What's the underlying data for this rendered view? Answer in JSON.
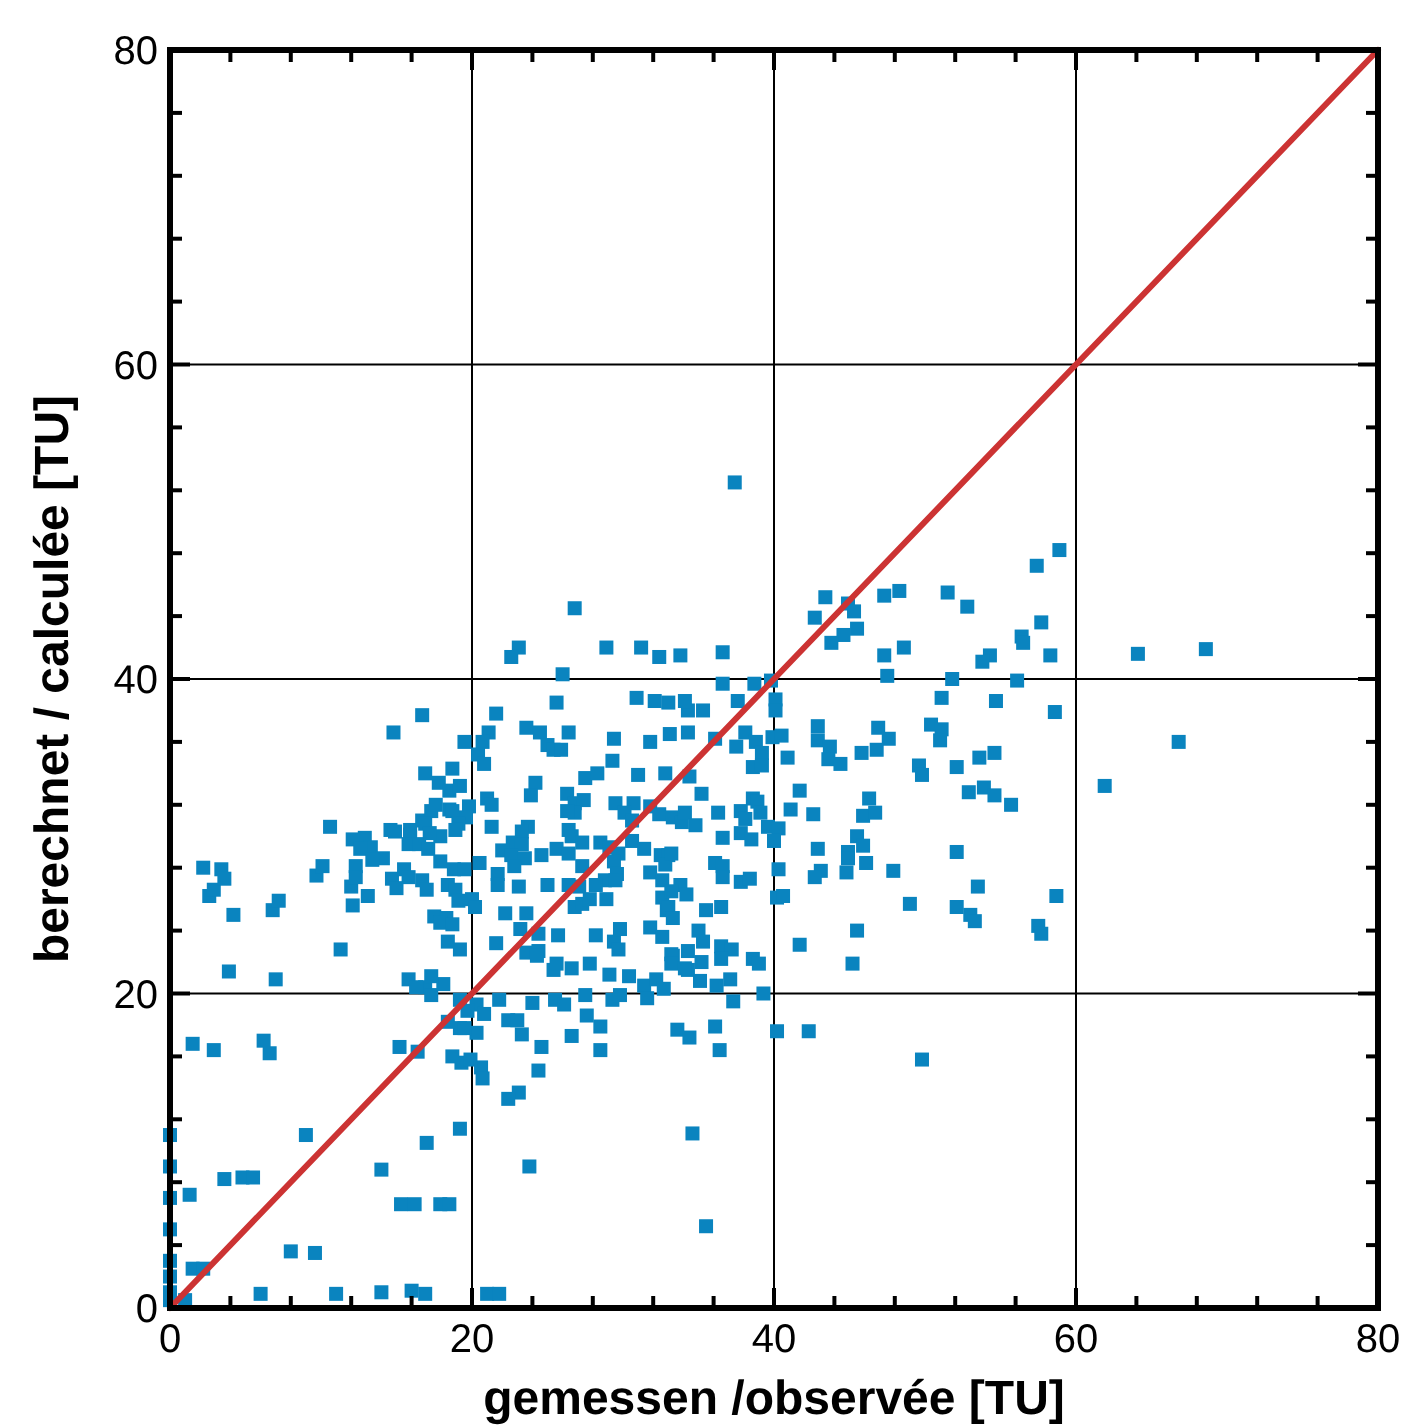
{
  "chart_data": {
    "type": "scatter",
    "xlabel": "gemessen /observée [TU]",
    "ylabel": "berechnet / calculée [TU]",
    "xlim": [
      0,
      80
    ],
    "ylim": [
      0,
      80
    ],
    "xticks": [
      0,
      {
        "value": 4,
        "label": null
      },
      {
        "value": 8,
        "label": null
      },
      {
        "value": 12,
        "label": null
      },
      {
        "value": 16,
        "label": null
      },
      20,
      {
        "value": 24,
        "label": null
      },
      {
        "value": 28,
        "label": null
      },
      {
        "value": 32,
        "label": null
      },
      {
        "value": 36,
        "label": null
      },
      40,
      {
        "value": 44,
        "label": null
      },
      {
        "value": 48,
        "label": null
      },
      {
        "value": 52,
        "label": null
      },
      {
        "value": 56,
        "label": null
      },
      60,
      {
        "value": 64,
        "label": null
      },
      {
        "value": 68,
        "label": null
      },
      {
        "value": 72,
        "label": null
      },
      {
        "value": 76,
        "label": null
      },
      80
    ],
    "yticks": [
      0,
      {
        "value": 4,
        "label": null
      },
      {
        "value": 8,
        "label": null
      },
      {
        "value": 12,
        "label": null
      },
      {
        "value": 16,
        "label": null
      },
      20,
      {
        "value": 24,
        "label": null
      },
      {
        "value": 28,
        "label": null
      },
      {
        "value": 32,
        "label": null
      },
      {
        "value": 36,
        "label": null
      },
      40,
      {
        "value": 44,
        "label": null
      },
      {
        "value": 48,
        "label": null
      },
      {
        "value": 52,
        "label": null
      },
      {
        "value": 56,
        "label": null
      },
      60,
      {
        "value": 64,
        "label": null
      },
      {
        "value": 68,
        "label": null
      },
      {
        "value": 72,
        "label": null
      },
      {
        "value": 76,
        "label": null
      },
      80
    ],
    "grid": true,
    "series": [
      {
        "color": "#0a84bf",
        "marker": "square",
        "x": [
          0,
          0,
          0,
          0,
          0,
          0,
          0,
          0,
          1,
          1.5,
          2.2,
          1.3,
          6.0,
          11,
          14,
          16,
          16.9,
          8.0,
          9.6,
          3.6,
          4.8,
          5.5,
          9.0,
          14,
          15.3,
          16.2,
          17.9,
          18.5,
          17.0,
          19.2,
          21.0,
          21.8,
          1.5,
          2.9,
          6.2,
          6.6,
          16.4,
          19.2,
          19.3,
          20.6,
          20.3,
          20.3,
          20.8,
          16.9,
          17.3,
          18.1,
          3.9,
          7.0,
          11.3,
          19.2,
          4.2,
          6.8,
          7.2,
          2.6,
          2.9,
          2.2,
          3.4,
          3.6,
          10.6,
          9.7,
          10.1,
          12.0,
          12.3,
          13.1,
          14.7,
          15.5,
          16.7,
          17.5,
          18.3,
          12.9,
          13.3,
          14.1,
          14.6,
          15.9,
          16.7,
          17.3,
          18.5,
          26.8,
          23.1,
          22.6,
          28.9,
          31.2,
          32.4,
          26.0,
          30.9,
          32.1,
          33.0,
          34.3,
          25.6,
          16.7,
          21.6,
          14.8,
          21.1,
          20.7,
          20.4,
          19.5,
          23.6,
          24.5,
          25.0,
          25.4,
          25.9,
          26.4,
          29.4,
          31.8,
          33.1,
          20.8,
          16.9,
          17.8,
          18.7,
          29.3,
          27.5,
          28.3,
          31.0,
          32.8,
          24.2,
          23.9,
          18.5,
          19.2,
          17.6,
          21.0,
          21.3,
          19.8,
          19.6,
          26.3,
          26.8,
          27.4,
          26.8,
          26.3,
          29.5,
          30.7,
          30.1,
          30.6,
          31.8,
          32.4,
          33.3,
          33.9,
          16.9,
          15.9,
          14.9,
          12.1,
          12.6,
          13.4,
          18.7,
          19.1,
          18.9,
          21.3,
          23.7,
          23.3,
          17.9,
          17.2,
          15.8,
          16.5,
          17.1,
          22.7,
          23.3,
          26.4,
          26.6,
          27.3,
          28.5,
          29.1,
          29.7,
          30.6,
          31.4,
          32.5,
          33.0,
          22.0,
          22.6,
          23.5,
          24.6,
          25.6,
          26.4,
          17.9,
          18.8,
          19.5,
          20.5,
          21.7,
          22.8,
          27.3,
          29.4,
          29.6,
          28.8,
          12.3,
          15.8,
          15.0,
          17.0,
          18.4,
          18.9,
          21.7,
          23.1,
          25.0,
          26.4,
          27.1,
          28.2,
          29.5,
          31.8,
          32.6,
          33.8,
          12.1,
          19.1,
          20.0,
          20.2,
          26.8,
          27.3,
          27.8,
          28.9,
          32.6,
          32.9,
          17.9,
          18.7,
          22.2,
          23.6,
          18.4,
          21.6,
          23.2,
          24.4,
          25.7,
          28.2,
          29.4,
          29.8,
          29.7,
          31.8,
          32.6,
          33.3,
          34.3,
          23.6,
          24.4,
          24.3,
          25.4,
          25.6,
          26.6,
          27.8,
          29.1,
          30.4,
          31.4,
          32.2,
          34.3,
          15.8,
          16.3,
          17.3,
          19.2,
          19.7,
          21.8,
          24.0,
          25.5,
          26.1,
          27.5,
          29.3,
          29.8,
          31.6,
          18.4,
          19.5,
          22.4,
          23.0,
          23.3,
          26.6,
          27.6,
          28.5,
          28.5,
          33.6,
          15.2,
          18.7,
          19.9,
          24.6,
          24.4,
          23.1,
          22.4,
          37.4,
          57.4,
          58.9,
          51.5,
          52.8,
          57.7,
          56.4,
          56.5,
          58.3,
          54.3,
          53.8,
          47.3,
          48.3,
          43.4,
          44.9,
          45.3,
          42.7,
          45.5,
          44.6,
          43.8,
          47.3,
          48.6,
          33.8,
          36.6,
          36.6,
          38.7,
          39.8,
          47.5,
          51.8,
          56.1,
          51.1,
          54.7,
          58.6,
          34.1,
          37.6,
          40.1,
          40.1,
          35.3,
          42.9,
          46.9,
          47.6,
          50.4,
          51.1,
          51.0,
          34.3,
          36.1,
          37.5,
          38.1,
          38.8,
          39.2,
          39.9,
          40.5,
          40.9,
          42.9,
          43.7,
          43.6,
          44.4,
          45.8,
          46.8,
          38.6,
          39.2,
          49.6,
          49.8,
          52.1,
          53.6,
          54.6,
          34.4,
          35.2,
          38.6,
          38.9,
          41.7,
          41.1,
          42.6,
          46.3,
          45.9,
          46.7,
          52.9,
          53.9,
          54.6,
          55.7,
          34.1,
          36.3,
          37.8,
          39.1,
          38.1,
          39.6,
          40.3,
          34.8,
          36.6,
          37.8,
          38.5,
          40.0,
          42.9,
          44.9,
          45.5,
          45.9,
          44.9,
          52.1,
          36.1,
          32.8,
          33.2,
          36.6,
          40.3,
          43.1,
          42.7,
          44.8,
          46.1,
          47.9,
          36.6,
          37.8,
          38.4,
          33.2,
          34.2,
          40.2,
          40.6,
          58.7,
          33.0,
          35.5,
          36.5,
          33.3,
          52.1,
          35.0,
          35.3,
          36.5,
          37.2,
          33.2,
          36.5,
          45.5,
          41.7,
          45.2,
          57.5,
          57.7,
          33.2,
          34.1,
          35.2,
          38.6,
          39.0,
          35.1,
          36.2,
          37.1,
          32.7,
          39.3,
          37.3,
          36.1,
          34.4,
          40.2,
          42.3,
          36.4,
          49.8,
          64.1,
          68.6,
          66.8,
          61.9,
          53.5,
          53.0,
          53.3,
          49.0,
          35.5,
          34.6,
          23.8,
          20.7
        ],
        "values": [
          0.5,
          1,
          2,
          3,
          5,
          7,
          9,
          11,
          0.5,
          2.5,
          2.5,
          7.2,
          0.9,
          0.9,
          1.0,
          1.1,
          0.9,
          3.6,
          3.5,
          8.2,
          8.3,
          8.3,
          11.0,
          8.8,
          6.6,
          6.6,
          6.6,
          6.6,
          10.5,
          11.4,
          0.9,
          0.9,
          16.8,
          16.4,
          17.0,
          16.2,
          16.3,
          17.8,
          15.6,
          15.3,
          17.5,
          19.3,
          18.7,
          20.4,
          19.9,
          20.6,
          21.4,
          20.9,
          22.8,
          22.8,
          25.0,
          25.3,
          25.9,
          26.2,
          26.6,
          28.0,
          27.9,
          27.3,
          30.6,
          27.5,
          28.1,
          26.8,
          28.1,
          26.2,
          27.3,
          27.9,
          27.2,
          24.9,
          24.8,
          29.9,
          29.3,
          28.6,
          30.4,
          30.4,
          31.0,
          31.6,
          31.7,
          44.5,
          42.0,
          41.4,
          42.0,
          42.0,
          41.4,
          40.3,
          38.8,
          38.6,
          38.5,
          38.0,
          38.5,
          37.7,
          37.8,
          36.6,
          36.6,
          36.0,
          35.2,
          36.0,
          36.9,
          36.6,
          35.8,
          35.5,
          35.5,
          36.6,
          36.2,
          36.0,
          36.5,
          34.6,
          34.0,
          33.4,
          34.3,
          34.8,
          33.7,
          34.0,
          33.9,
          34.0,
          33.4,
          32.6,
          32.9,
          33.2,
          32.0,
          32.4,
          32.0,
          31.9,
          31.2,
          32.7,
          32.1,
          32.3,
          31.5,
          31.6,
          32.1,
          32.1,
          31.5,
          31.0,
          31.9,
          31.4,
          31.2,
          30.9,
          30.8,
          30.1,
          30.3,
          29.8,
          29.2,
          28.5,
          31.6,
          30.8,
          30.4,
          30.6,
          30.6,
          30.3,
          30.0,
          30.2,
          29.5,
          29.5,
          29.2,
          29.6,
          29.5,
          30.4,
          30.0,
          29.6,
          29.6,
          29.3,
          28.9,
          29.7,
          29.2,
          28.8,
          28.8,
          29.1,
          28.8,
          28.6,
          28.8,
          29.2,
          28.9,
          28.4,
          27.9,
          27.9,
          28.3,
          27.6,
          28.1,
          28.1,
          28.4,
          27.6,
          27.2,
          27.4,
          27.4,
          26.7,
          26.6,
          26.9,
          26.6,
          26.9,
          26.8,
          26.9,
          26.9,
          26.8,
          26.9,
          27.2,
          27.7,
          27.2,
          26.9,
          25.6,
          25.9,
          26.0,
          25.5,
          25.5,
          25.7,
          26.0,
          26.0,
          26.1,
          25.3,
          24.5,
          24.4,
          25.1,
          25.1,
          23.3,
          23.2,
          24.1,
          23.8,
          23.7,
          23.7,
          23.3,
          24.1,
          22.8,
          24.2,
          23.6,
          22.4,
          22.7,
          22.6,
          22.7,
          22.4,
          21.5,
          21.9,
          21.6,
          21.9,
          21.2,
          21.1,
          20.5,
          20.9,
          21.5,
          20.9,
          20.4,
          21.1,
          19.6,
          18.9,
          19.6,
          19.4,
          19.6,
          19.3,
          19.9,
          19.6,
          19.9,
          19.7,
          18.2,
          17.8,
          18.3,
          18.3,
          17.4,
          17.3,
          18.6,
          17.9,
          16.4,
          17.7,
          16.6,
          16.0,
          15.8,
          16.6,
          15.1,
          13.7,
          13.3,
          52.5,
          47.2,
          48.2,
          45.5,
          44.6,
          43.6,
          42.7,
          42.3,
          41.5,
          41.5,
          41.1,
          45.3,
          45.6,
          45.2,
          44.8,
          44.3,
          43.9,
          43.2,
          42.8,
          42.3,
          41.5,
          42.0,
          41.5,
          41.7,
          39.7,
          39.7,
          39.9,
          40.2,
          40.0,
          39.9,
          38.8,
          38.6,
          37.9,
          38.6,
          38.6,
          38.7,
          38.0,
          38.0,
          37.0,
          36.9,
          36.2,
          37.1,
          36.8,
          36.1,
          36.6,
          36.2,
          35.7,
          36.6,
          36.0,
          35.3,
          36.3,
          36.4,
          35.0,
          36.1,
          35.7,
          34.9,
          34.6,
          35.3,
          35.5,
          34.4,
          34.5,
          34.5,
          33.9,
          34.4,
          35.0,
          35.3,
          33.8,
          32.7,
          32.4,
          32.2,
          32.9,
          31.7,
          31.4,
          32.4,
          31.3,
          31.5,
          32.8,
          33.1,
          32.6,
          32.0,
          31.5,
          31.5,
          31.6,
          31.5,
          31.1,
          30.6,
          30.5,
          30.7,
          29.9,
          30.2,
          29.8,
          29.7,
          29.2,
          29.0,
          30.0,
          29.4,
          28.6,
          29.0,
          28.3,
          28.2,
          28.9,
          28.1,
          27.9,
          27.8,
          27.4,
          27.7,
          28.3,
          27.8,
          27.4,
          27.1,
          27.3,
          26.5,
          26.3,
          26.1,
          26.2,
          26.2,
          25.5,
          25.3,
          25.5,
          24.8,
          25.5,
          24.0,
          23.3,
          23.0,
          22.8,
          22.5,
          22.2,
          24.0,
          23.1,
          21.9,
          24.3,
          23.8,
          21.9,
          21.6,
          22.0,
          22.2,
          21.9,
          20.8,
          20.5,
          20.9,
          20.3,
          20.0,
          19.5,
          17.9,
          17.2,
          17.6,
          17.6,
          16.4,
          15.8,
          41.6,
          41.9,
          36.0,
          33.2,
          26.8,
          25.0,
          24.6,
          25.7,
          5.2,
          11.1,
          9.0,
          14.6
        ]
      },
      {
        "type": "line",
        "color": "#cc3333",
        "marker": "none",
        "line_style": "solid",
        "x": [
          0,
          80
        ],
        "values": [
          0,
          80
        ]
      }
    ]
  }
}
